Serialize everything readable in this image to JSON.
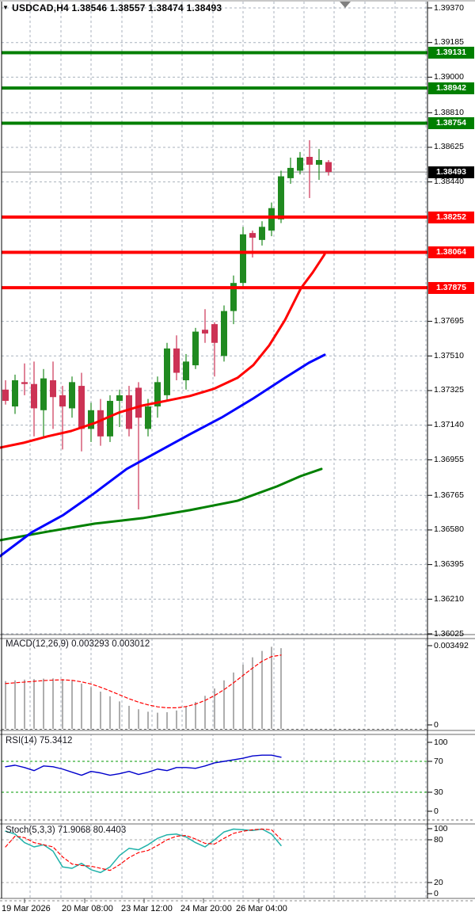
{
  "quote": {
    "symbol": "USDCAD,H4",
    "open": "1.38546",
    "high": "1.38557",
    "low": "1.38474",
    "close": "1.38493"
  },
  "icons": {
    "expand_arrow": "▼",
    "time_marker": "triangle-down"
  },
  "price_axis": {
    "ticks": [
      "1.39370",
      "1.39185",
      "1.39000",
      "1.38810",
      "1.38625",
      "1.38440",
      "1.37695",
      "1.37510",
      "1.37325",
      "1.37140",
      "1.36955",
      "1.36765",
      "1.36580",
      "1.36395",
      "1.36210",
      "1.36025"
    ]
  },
  "levels": {
    "resistance": [
      {
        "label": "1.39131",
        "price": 1.39131
      },
      {
        "label": "1.38942",
        "price": 1.38942
      },
      {
        "label": "1.38754",
        "price": 1.38754
      }
    ],
    "support": [
      {
        "label": "1.38252",
        "price": 1.38252
      },
      {
        "label": "1.38064",
        "price": 1.38064
      },
      {
        "label": "1.37875",
        "price": 1.37875
      }
    ],
    "current": {
      "label": "1.38493",
      "price": 1.38493
    }
  },
  "time_axis": {
    "labels": [
      "19 Mar 2026",
      "20 Mar 08:00",
      "23 Mar 12:00",
      "24 Mar 20:00",
      "26 Mar 04:00"
    ]
  },
  "indicators": {
    "macd": {
      "title": "MACD(12,26,9)",
      "value_main": "0.003293",
      "value_signal": "0.003012",
      "axis_labels": [
        "0.003492",
        "0"
      ]
    },
    "rsi": {
      "title": "RSI(14)",
      "value": "75.3412",
      "axis_labels": [
        "100",
        "70",
        "30",
        "0"
      ]
    },
    "stoch": {
      "title": "Stoch(5,3,3)",
      "value_main": "71.9068",
      "value_signal": "80.4403",
      "axis_labels": [
        "100",
        "80",
        "20",
        "0"
      ]
    }
  },
  "colors": {
    "bull": "#208a20",
    "bear": "#cc3355",
    "resistance_line": "#007f00",
    "support_line": "#ff0000",
    "bid_line": "#808080",
    "bid_label_bg": "#000000",
    "ma_fast": "#ff0000",
    "ma_mid": "#0000ff",
    "ma_slow": "#008000",
    "grid": "#a9b2bd",
    "macd_hist": "#9a9a9a",
    "macd_signal": "#ff0000",
    "rsi_line": "#0000cc",
    "rsi_level": "#009900",
    "stoch_k": "#20b2aa",
    "stoch_d": "#ff0000",
    "stoch_level": "#a8a8a8",
    "separator": "#6a6a6a",
    "marker": "#808080"
  },
  "chart_data": [
    {
      "type": "candlestick",
      "title": "USDCAD H4",
      "price_range": {
        "min": 1.36025,
        "max": 1.3937
      },
      "ticks": [
        1.3937,
        1.39185,
        1.39,
        1.3881,
        1.38625,
        1.3844,
        1.37695,
        1.3751,
        1.37325,
        1.3714,
        1.36955,
        1.36765,
        1.3658,
        1.36395,
        1.3621,
        1.36025
      ],
      "candles_ohlc": [
        [
          1.3733,
          1.3738,
          1.3725,
          1.3727
        ],
        [
          1.3724,
          1.3741,
          1.372,
          1.3738
        ],
        [
          1.3737,
          1.3747,
          1.373,
          1.3736
        ],
        [
          1.3736,
          1.3748,
          1.3708,
          1.3723
        ],
        [
          1.3722,
          1.3744,
          1.3707,
          1.3739
        ],
        [
          1.3738,
          1.3748,
          1.3712,
          1.3729
        ],
        [
          1.373,
          1.3735,
          1.3701,
          1.3724
        ],
        [
          1.3723,
          1.374,
          1.3718,
          1.3737
        ],
        [
          1.3735,
          1.3742,
          1.37,
          1.3712
        ],
        [
          1.3712,
          1.3726,
          1.3705,
          1.3722
        ],
        [
          1.3722,
          1.3728,
          1.3703,
          1.3708
        ],
        [
          1.3708,
          1.373,
          1.3705,
          1.3727
        ],
        [
          1.3727,
          1.3733,
          1.3713,
          1.373
        ],
        [
          1.373,
          1.3735,
          1.3708,
          1.3712
        ],
        [
          1.3734,
          1.3737,
          1.3669,
          1.3718
        ],
        [
          1.3712,
          1.3728,
          1.3708,
          1.3724
        ],
        [
          1.3724,
          1.374,
          1.3718,
          1.3737
        ],
        [
          1.373,
          1.3758,
          1.3727,
          1.3755
        ],
        [
          1.3755,
          1.3762,
          1.3738,
          1.3742
        ],
        [
          1.3738,
          1.3752,
          1.3733,
          1.3748
        ],
        [
          1.3746,
          1.3766,
          1.3744,
          1.3764
        ],
        [
          1.3765,
          1.3776,
          1.3758,
          1.3763
        ],
        [
          1.3768,
          1.3769,
          1.374,
          1.3758
        ],
        [
          1.3751,
          1.3778,
          1.3748,
          1.3775
        ],
        [
          1.3775,
          1.3794,
          1.3768,
          1.379
        ],
        [
          1.379,
          1.382,
          1.3788,
          1.3816
        ],
        [
          1.38167,
          1.3818,
          1.38036,
          1.38142
        ],
        [
          1.3813,
          1.3823,
          1.381,
          1.382
        ],
        [
          1.3818,
          1.3833,
          1.3815,
          1.383
        ],
        [
          1.3824,
          1.385,
          1.3822,
          1.3847
        ],
        [
          1.3846,
          1.3857,
          1.3843,
          1.38515
        ],
        [
          1.385,
          1.386,
          1.3848,
          1.3857
        ],
        [
          1.38574,
          1.38663,
          1.38354,
          1.38532
        ],
        [
          1.38532,
          1.38616,
          1.38451,
          1.38557
        ],
        [
          1.38546,
          1.38557,
          1.38474,
          1.38493
        ]
      ],
      "hlines": {
        "resistance": [
          1.39131,
          1.38942,
          1.38754
        ],
        "support": [
          1.38252,
          1.38064,
          1.37875
        ],
        "bid": 1.38493
      },
      "overlays": [
        {
          "name": "ma-fast-red",
          "points": [
            [
              0,
              1.3702
            ],
            [
              30,
              1.37046
            ],
            [
              60,
              1.3708
            ],
            [
              90,
              1.37109
            ],
            [
              120,
              1.37152
            ],
            [
              150,
              1.37207
            ],
            [
              180,
              1.37245
            ],
            [
              210,
              1.3727
            ],
            [
              240,
              1.37296
            ],
            [
              270,
              1.37334
            ],
            [
              300,
              1.37393
            ],
            [
              320,
              1.37461
            ],
            [
              340,
              1.37566
            ],
            [
              360,
              1.37702
            ],
            [
              380,
              1.37871
            ],
            [
              395,
              1.37956
            ],
            [
              410,
              1.38053
            ]
          ]
        },
        {
          "name": "ma-mid-blue",
          "points": [
            [
              0,
              1.3644
            ],
            [
              40,
              1.36567
            ],
            [
              80,
              1.3666
            ],
            [
              120,
              1.36779
            ],
            [
              160,
              1.36906
            ],
            [
              200,
              1.36999
            ],
            [
              240,
              1.37092
            ],
            [
              280,
              1.37181
            ],
            [
              320,
              1.37283
            ],
            [
              360,
              1.37393
            ],
            [
              390,
              1.37473
            ],
            [
              410,
              1.37516
            ]
          ]
        },
        {
          "name": "ma-slow-green",
          "points": [
            [
              0,
              1.36525
            ],
            [
              60,
              1.36571
            ],
            [
              120,
              1.36614
            ],
            [
              180,
              1.36643
            ],
            [
              240,
              1.36686
            ],
            [
              300,
              1.36736
            ],
            [
              350,
              1.36813
            ],
            [
              380,
              1.36868
            ],
            [
              406,
              1.36906
            ]
          ]
        }
      ]
    },
    {
      "type": "bar",
      "title": "MACD(12,26,9)",
      "ymin": 0,
      "ymax": 0.003492,
      "histogram": [
        0.00195,
        0.00198,
        0.00201,
        0.00203,
        0.00205,
        0.00206,
        0.00203,
        0.00196,
        0.00185,
        0.0017,
        0.00152,
        0.00133,
        0.00112,
        0.00094,
        0.0008,
        0.0007,
        0.00066,
        0.00068,
        0.00075,
        0.0009,
        0.0011,
        0.00135,
        0.00165,
        0.00198,
        0.0023,
        0.00262,
        0.00292,
        0.00318,
        0.00335,
        0.003293
      ],
      "signal": [
        0.00185,
        0.00188,
        0.00191,
        0.00194,
        0.00197,
        0.00199,
        0.002,
        0.00198,
        0.00192,
        0.00183,
        0.0017,
        0.00155,
        0.00139,
        0.00123,
        0.00109,
        0.00098,
        0.0009,
        0.00086,
        0.00086,
        0.00091,
        0.00101,
        0.00116,
        0.00136,
        0.0016,
        0.00188,
        0.00218,
        0.00248,
        0.00276,
        0.00295,
        0.003012
      ]
    },
    {
      "type": "line",
      "title": "RSI(14)",
      "range": [
        0,
        100
      ],
      "levels": [
        70,
        30
      ],
      "values": [
        63,
        65,
        62,
        58,
        64,
        63,
        60,
        56,
        52,
        57,
        55,
        52,
        54,
        57,
        53,
        56,
        60,
        58,
        62,
        62,
        61,
        64,
        68,
        70,
        72,
        74,
        77,
        78,
        78,
        75.34
      ]
    },
    {
      "type": "line",
      "title": "Stoch(5,3,3)",
      "range": [
        0,
        100
      ],
      "levels": [
        80,
        20
      ],
      "k": [
        92,
        88,
        76,
        70,
        73,
        64,
        42,
        40,
        47,
        38,
        34,
        42,
        58,
        68,
        66,
        73,
        82,
        87,
        88,
        84,
        76,
        70,
        80,
        91,
        95,
        94,
        93,
        95,
        88,
        71.91
      ],
      "d": [
        70,
        85,
        83,
        76,
        73,
        70,
        56,
        46,
        44,
        43,
        40,
        37,
        45,
        55,
        62,
        65,
        72,
        80,
        85,
        86,
        81,
        75,
        74,
        82,
        89,
        92,
        94,
        95,
        94,
        80.44
      ]
    }
  ]
}
